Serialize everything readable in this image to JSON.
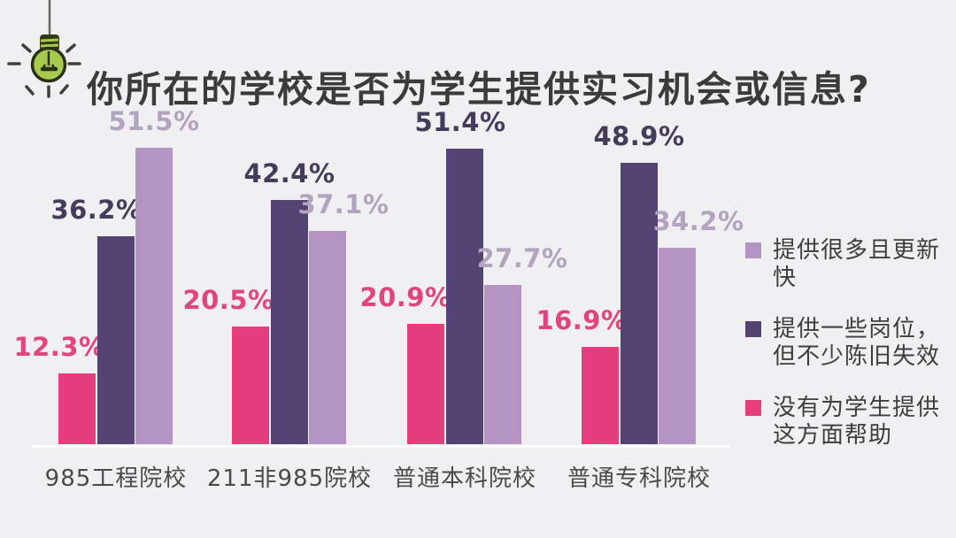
{
  "header": {
    "title": "你所在的学校是否为学生提供实习机会或信息?",
    "icon": "lightbulb-icon"
  },
  "chart_data": {
    "type": "bar",
    "title": "你所在的学校是否为学生提供实习机会或信息?",
    "xlabel": "",
    "ylabel": "",
    "value_suffix": "%",
    "ylim": [
      0,
      55
    ],
    "grid": false,
    "legend_position": "right",
    "categories": [
      "985工程院校",
      "211非985院校",
      "普通本科院校",
      "普通专科院校"
    ],
    "series": [
      {
        "name": "没有为学生提供这方面帮助",
        "color": "#e63e7d",
        "label_color": "#e2457e",
        "values": [
          12.3,
          20.5,
          20.9,
          16.9
        ]
      },
      {
        "name": "提供一些岗位，但不少陈旧失效",
        "color": "#534272",
        "label_color": "#443c5a",
        "values": [
          36.2,
          42.4,
          51.4,
          48.9
        ]
      },
      {
        "name": "提供很多且更新快",
        "color": "#b394c2",
        "label_color": "#b2a3bf",
        "values": [
          51.5,
          37.1,
          27.7,
          34.2
        ]
      }
    ]
  },
  "legend": {
    "items": [
      {
        "label": "提供很多且更新快",
        "color": "#b394c2"
      },
      {
        "label": "提供一些岗位，但不少陈旧失效",
        "color": "#534272"
      },
      {
        "label": "没有为学生提供这方面帮助",
        "color": "#e63e7d"
      }
    ]
  },
  "colors": {
    "background": "#f0eff2",
    "title_text": "#3b3b3b",
    "category_text": "#4a4a4a",
    "legend_text": "#3e3e3e",
    "bulb_green": "#a6cb4e"
  }
}
